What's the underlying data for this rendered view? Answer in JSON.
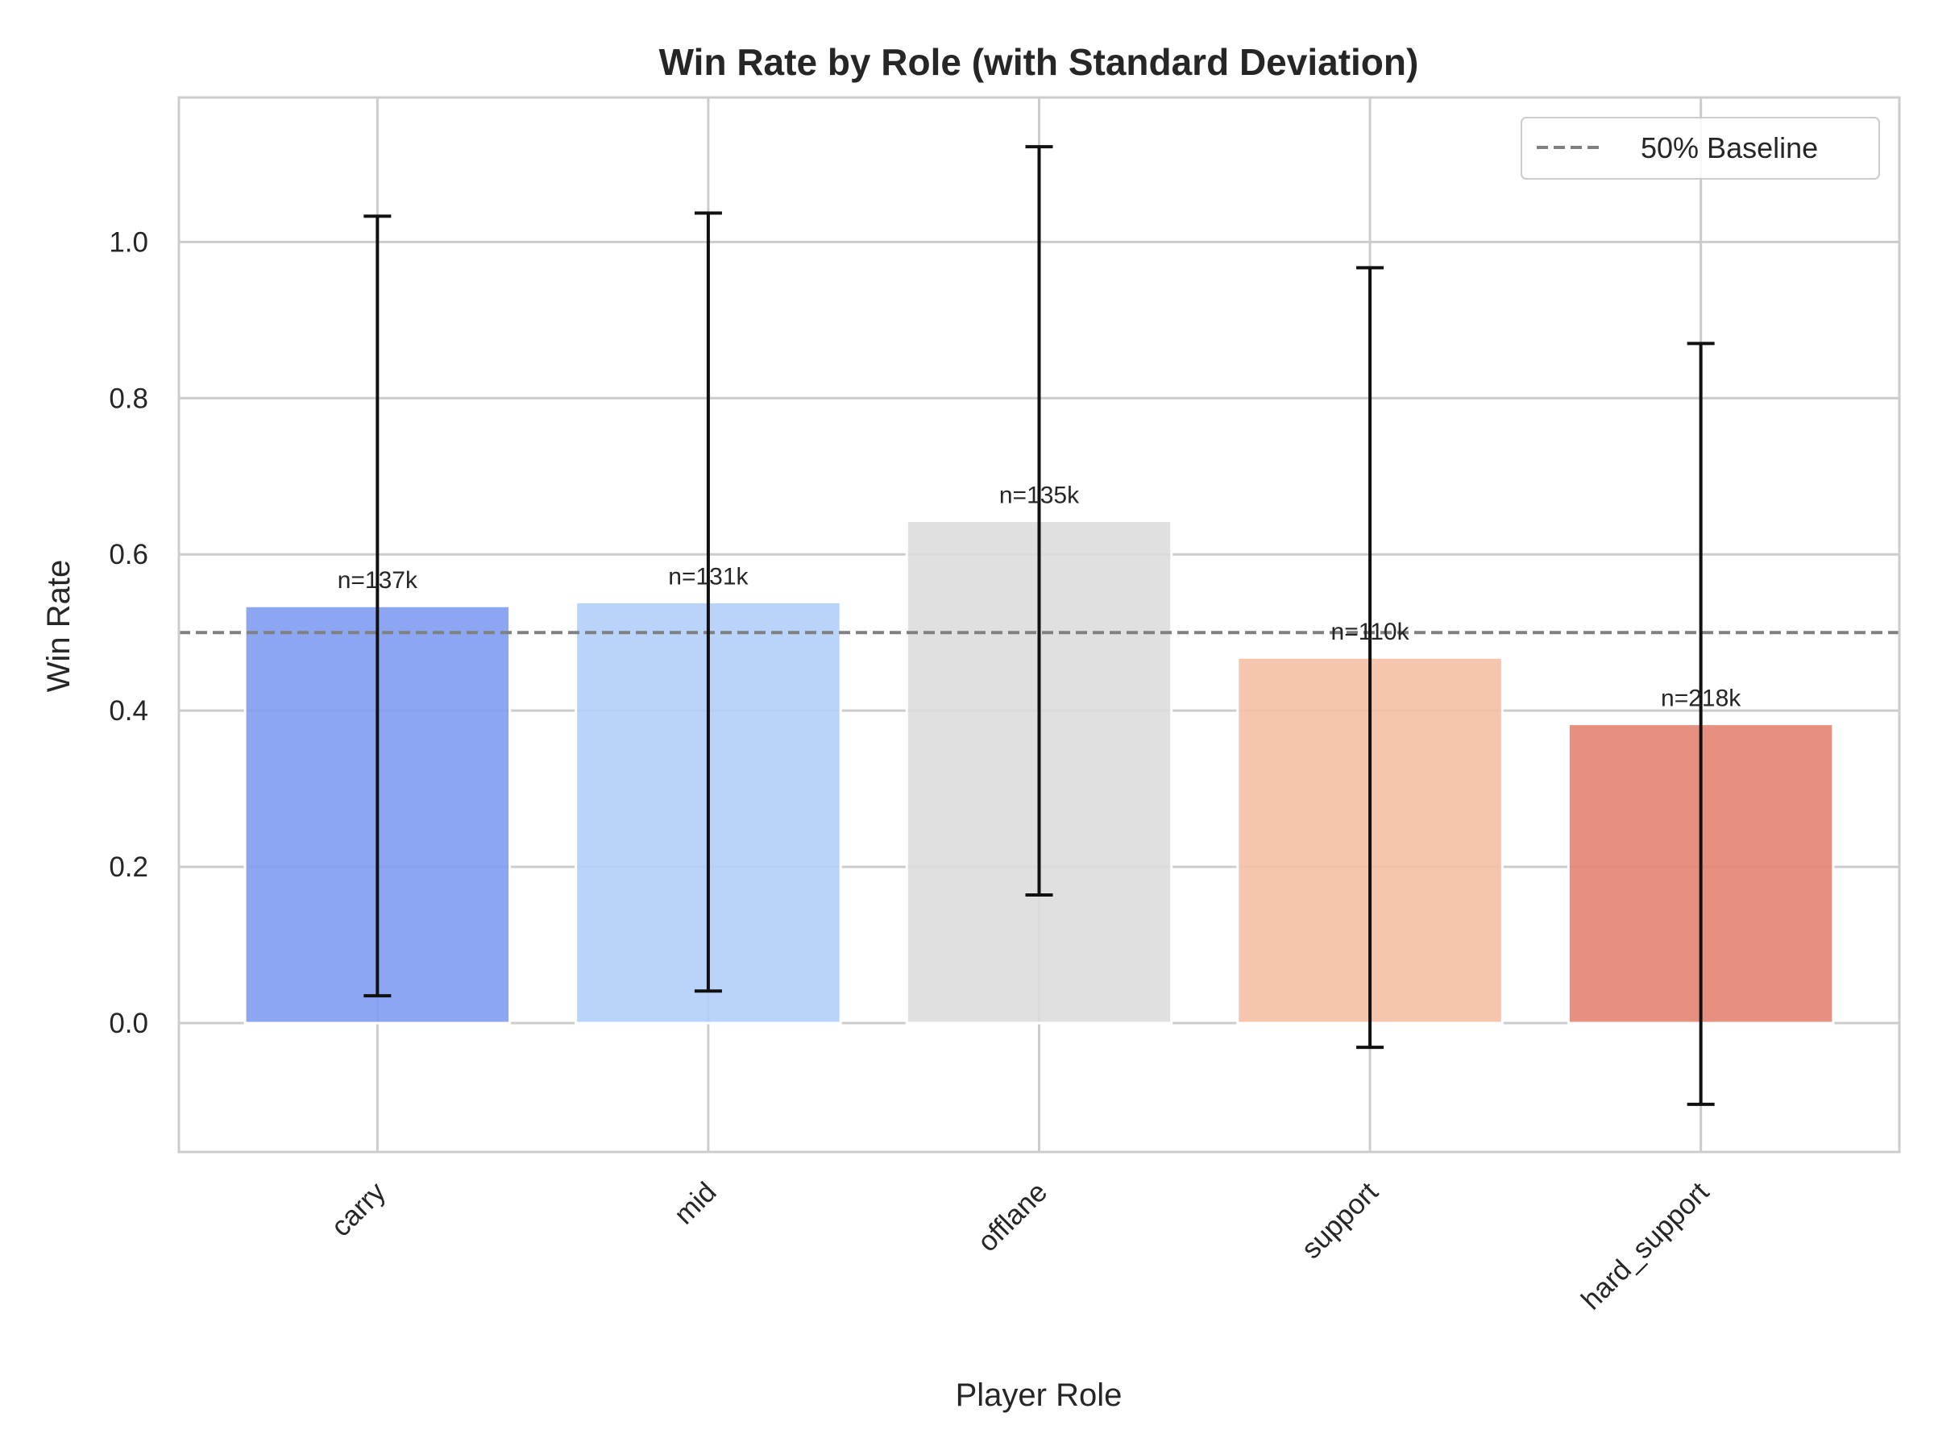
{
  "chart_data": {
    "type": "bar",
    "title": "Win Rate by Role (with Standard Deviation)",
    "xlabel": "Player Role",
    "ylabel": "Win Rate",
    "categories": [
      "carry",
      "mid",
      "offlane",
      "support",
      "hard_support"
    ],
    "values": [
      0.534,
      0.539,
      0.643,
      0.468,
      0.383
    ],
    "error_std": [
      0.499,
      0.498,
      0.479,
      0.499,
      0.487
    ],
    "bar_labels": [
      "n=137k",
      "n=131k",
      "n=135k",
      "n=110k",
      "n=218k"
    ],
    "colors": [
      "#7f9cf0",
      "#b2cefb",
      "#dddddd",
      "#f5bfa5",
      "#e68471"
    ],
    "ylim": [
      -0.165,
      1.185
    ],
    "yticks": [
      0.0,
      0.2,
      0.4,
      0.6,
      0.8,
      1.0
    ],
    "ytick_labels": [
      "0.0",
      "0.2",
      "0.4",
      "0.6",
      "0.8",
      "1.0"
    ],
    "baseline": {
      "value": 0.5,
      "label": "50% Baseline",
      "style": "dashed",
      "color": "#808080"
    },
    "legend": {
      "position": "top-right",
      "entries": [
        "50% Baseline"
      ]
    },
    "grid": true
  }
}
